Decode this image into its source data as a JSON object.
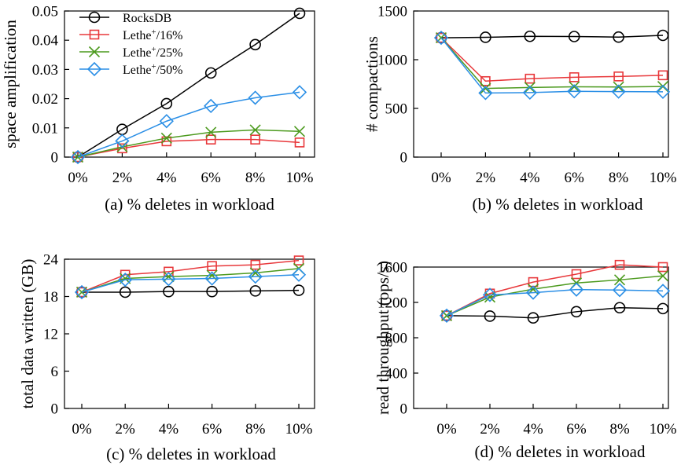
{
  "colors": {
    "RocksDB": "#000000",
    "Lethe16": "#e8383b",
    "Lethe25": "#4c9a1e",
    "Lethe50": "#2b8fe6"
  },
  "legend": [
    {
      "base": "RocksDB",
      "sup": "",
      "rest": "",
      "marker": "circle",
      "color_key": "RocksDB"
    },
    {
      "base": "Lethe",
      "sup": "+",
      "rest": "/16%",
      "marker": "square",
      "color_key": "Lethe16"
    },
    {
      "base": "Lethe",
      "sup": "+",
      "rest": "/25%",
      "marker": "x",
      "color_key": "Lethe25"
    },
    {
      "base": "Lethe",
      "sup": "+",
      "rest": "/50%",
      "marker": "diamond",
      "color_key": "Lethe50"
    }
  ],
  "chart_data": [
    {
      "type": "line",
      "caption": "(a) % deletes in workload",
      "ylabel": "space amplification",
      "categories": [
        "0%",
        "2%",
        "4%",
        "6%",
        "8%",
        "10%"
      ],
      "ylim": [
        0,
        0.05
      ],
      "yticks": [
        0,
        0.01,
        0.02,
        0.03,
        0.04,
        0.05
      ],
      "ytick_labels": [
        "0",
        "0.01",
        "0.02",
        "0.03",
        "0.04",
        "0.05"
      ],
      "legend_position": "top-left",
      "series": [
        {
          "name": "RocksDB",
          "color_key": "RocksDB",
          "marker": "circle",
          "values": [
            0,
            0.0095,
            0.0183,
            0.0288,
            0.0385,
            0.0492
          ]
        },
        {
          "name": "Lethe+/16%",
          "color_key": "Lethe16",
          "marker": "square",
          "values": [
            0,
            0.003,
            0.0054,
            0.006,
            0.006,
            0.005
          ]
        },
        {
          "name": "Lethe+/25%",
          "color_key": "Lethe25",
          "marker": "x",
          "values": [
            0,
            0.0035,
            0.0065,
            0.0085,
            0.0093,
            0.0088
          ]
        },
        {
          "name": "Lethe+/50%",
          "color_key": "Lethe50",
          "marker": "diamond",
          "values": [
            0,
            0.0055,
            0.0123,
            0.0175,
            0.0203,
            0.0222
          ]
        }
      ]
    },
    {
      "type": "line",
      "caption": "(b) % deletes in workload",
      "ylabel": "# compactions",
      "categories": [
        "0%",
        "2%",
        "4%",
        "6%",
        "8%",
        "10%"
      ],
      "ylim": [
        0,
        1500
      ],
      "yticks": [
        0,
        500,
        1000,
        1500
      ],
      "ytick_labels": [
        "0",
        "500",
        "1000",
        "1500"
      ],
      "series": [
        {
          "name": "RocksDB",
          "color_key": "RocksDB",
          "marker": "circle",
          "values": [
            1225,
            1230,
            1240,
            1238,
            1232,
            1250
          ]
        },
        {
          "name": "Lethe+/16%",
          "color_key": "Lethe16",
          "marker": "square",
          "values": [
            1225,
            780,
            805,
            820,
            828,
            840
          ]
        },
        {
          "name": "Lethe+/25%",
          "color_key": "Lethe25",
          "marker": "x",
          "values": [
            1225,
            705,
            715,
            722,
            720,
            725
          ]
        },
        {
          "name": "Lethe+/50%",
          "color_key": "Lethe50",
          "marker": "diamond",
          "values": [
            1225,
            658,
            662,
            675,
            672,
            670
          ]
        }
      ]
    },
    {
      "type": "line",
      "caption": "(c) % deletes in workload",
      "ylabel": "total data written (GB)",
      "categories": [
        "0%",
        "2%",
        "4%",
        "6%",
        "8%",
        "10%"
      ],
      "ylim": [
        0,
        24
      ],
      "yticks": [
        0,
        6,
        12,
        18,
        24
      ],
      "ytick_labels": [
        "0",
        "6",
        "12",
        "18",
        "24"
      ],
      "series": [
        {
          "name": "RocksDB",
          "color_key": "RocksDB",
          "marker": "circle",
          "values": [
            18.7,
            18.7,
            18.8,
            18.8,
            18.9,
            19.0
          ]
        },
        {
          "name": "Lethe+/16%",
          "color_key": "Lethe16",
          "marker": "square",
          "values": [
            18.7,
            21.5,
            22.0,
            22.9,
            23.1,
            23.8
          ]
        },
        {
          "name": "Lethe+/25%",
          "color_key": "Lethe25",
          "marker": "x",
          "values": [
            18.7,
            20.9,
            21.2,
            21.4,
            21.8,
            22.5
          ]
        },
        {
          "name": "Lethe+/50%",
          "color_key": "Lethe50",
          "marker": "diamond",
          "values": [
            18.7,
            20.7,
            20.8,
            20.9,
            21.2,
            21.5
          ]
        }
      ]
    },
    {
      "type": "line",
      "caption": "(d) % deletes in workload",
      "ylabel": "read throughput (ops/s)",
      "categories": [
        "0%",
        "2%",
        "4%",
        "6%",
        "8%",
        "10%"
      ],
      "ylim": [
        0,
        1600
      ],
      "yticks": [
        0,
        400,
        800,
        1200,
        1600
      ],
      "ytick_labels": [
        "0",
        "400",
        "800",
        "1200",
        "1600"
      ],
      "series": [
        {
          "name": "RocksDB",
          "color_key": "RocksDB",
          "marker": "circle",
          "values": [
            1050,
            1045,
            1025,
            1095,
            1140,
            1130
          ]
        },
        {
          "name": "Lethe+/16%",
          "color_key": "Lethe16",
          "marker": "square",
          "values": [
            1050,
            1300,
            1430,
            1520,
            1625,
            1600
          ]
        },
        {
          "name": "Lethe+/25%",
          "color_key": "Lethe25",
          "marker": "x",
          "values": [
            1050,
            1260,
            1350,
            1420,
            1455,
            1500
          ]
        },
        {
          "name": "Lethe+/50%",
          "color_key": "Lethe50",
          "marker": "diamond",
          "values": [
            1050,
            1285,
            1310,
            1345,
            1340,
            1330
          ]
        }
      ]
    }
  ]
}
